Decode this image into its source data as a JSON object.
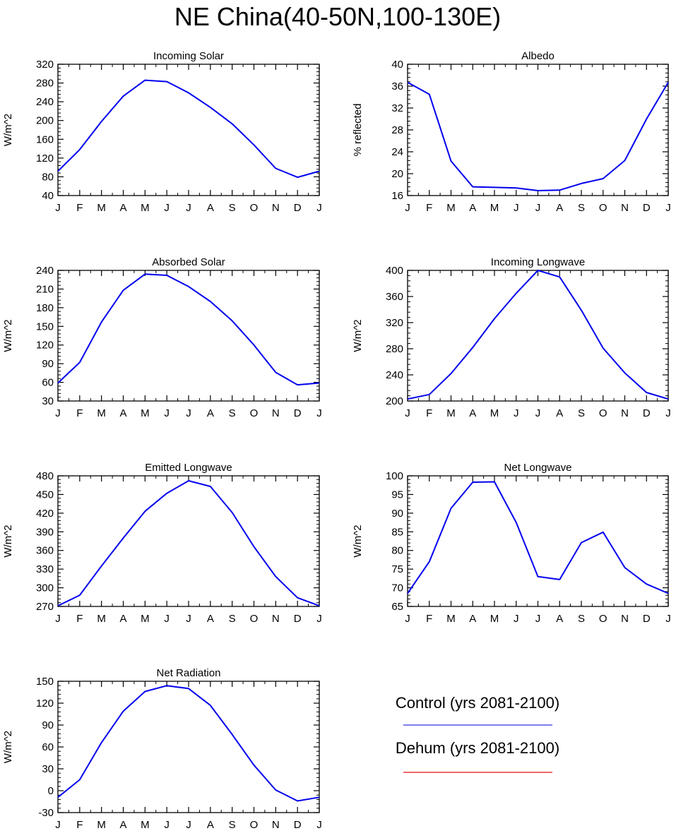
{
  "figure_title": "NE China(40-50N,100-130E)",
  "chart_data": [
    {
      "type": "line",
      "title": "Incoming Solar",
      "ylabel": "W/m^2",
      "categories": [
        "J",
        "F",
        "M",
        "A",
        "M",
        "J",
        "J",
        "A",
        "S",
        "O",
        "N",
        "D",
        "J"
      ],
      "yticks": [
        40,
        80,
        120,
        160,
        200,
        240,
        280,
        320
      ],
      "ylim": [
        40,
        320
      ],
      "series": [
        {
          "color": "#0000ee",
          "values": [
            92,
            138,
            198,
            252,
            286,
            283,
            259,
            228,
            193,
            148,
            98,
            79,
            92
          ]
        }
      ]
    },
    {
      "type": "line",
      "title": "Albedo",
      "ylabel": "% reflected",
      "categories": [
        "J",
        "F",
        "M",
        "A",
        "M",
        "J",
        "J",
        "A",
        "S",
        "O",
        "N",
        "D",
        "J"
      ],
      "yticks": [
        16,
        20,
        24,
        28,
        32,
        36,
        40
      ],
      "ylim": [
        16,
        40
      ],
      "series": [
        {
          "color": "#0000ee",
          "values": [
            36.7,
            34.5,
            22.3,
            17.6,
            17.5,
            17.4,
            16.9,
            17.0,
            18.2,
            19.1,
            22.4,
            30.0,
            36.7
          ]
        }
      ]
    },
    {
      "type": "line",
      "title": "Absorbed Solar",
      "ylabel": "W/m^2",
      "categories": [
        "J",
        "F",
        "M",
        "A",
        "M",
        "J",
        "J",
        "A",
        "S",
        "O",
        "N",
        "D",
        "J"
      ],
      "yticks": [
        30,
        60,
        90,
        120,
        150,
        180,
        210,
        240
      ],
      "ylim": [
        30,
        240
      ],
      "series": [
        {
          "color": "#0000ee",
          "values": [
            59,
            92,
            157,
            208,
            234,
            232,
            214,
            190,
            159,
            120,
            76,
            56,
            59
          ]
        }
      ]
    },
    {
      "type": "line",
      "title": "Incoming Longwave",
      "ylabel": "W/m^2",
      "categories": [
        "J",
        "F",
        "M",
        "A",
        "M",
        "J",
        "J",
        "A",
        "S",
        "O",
        "N",
        "D",
        "J"
      ],
      "yticks": [
        200,
        240,
        280,
        320,
        360,
        400
      ],
      "ylim": [
        200,
        400
      ],
      "series": [
        {
          "color": "#0000ee",
          "values": [
            203,
            210,
            242,
            282,
            326,
            365,
            400,
            390,
            339,
            281,
            243,
            213,
            203
          ]
        }
      ]
    },
    {
      "type": "line",
      "title": "Emitted Longwave",
      "ylabel": "W/m^2",
      "categories": [
        "J",
        "F",
        "M",
        "A",
        "M",
        "J",
        "J",
        "A",
        "S",
        "O",
        "N",
        "D",
        "J"
      ],
      "yticks": [
        270,
        300,
        330,
        360,
        390,
        420,
        450,
        480
      ],
      "ylim": [
        270,
        480
      ],
      "series": [
        {
          "color": "#0000ee",
          "values": [
            271,
            288,
            335,
            380,
            423,
            452,
            472,
            463,
            421,
            366,
            318,
            284,
            271
          ]
        }
      ]
    },
    {
      "type": "line",
      "title": "Net Longwave",
      "ylabel": "W/m^2",
      "categories": [
        "J",
        "F",
        "M",
        "A",
        "M",
        "J",
        "J",
        "A",
        "S",
        "O",
        "N",
        "D",
        "J"
      ],
      "yticks": [
        65,
        70,
        75,
        80,
        85,
        90,
        95,
        100
      ],
      "ylim": [
        65,
        100
      ],
      "series": [
        {
          "color": "#0000ee",
          "values": [
            68.5,
            77.0,
            91.3,
            98.3,
            98.4,
            87.5,
            73.0,
            72.2,
            82.1,
            84.9,
            75.4,
            71.0,
            68.5
          ]
        }
      ]
    },
    {
      "type": "line",
      "title": "Net Radiation",
      "ylabel": "W/m^2",
      "categories": [
        "J",
        "F",
        "M",
        "A",
        "M",
        "J",
        "J",
        "A",
        "S",
        "O",
        "N",
        "D",
        "J"
      ],
      "yticks": [
        -30,
        0,
        30,
        60,
        90,
        120,
        150
      ],
      "ylim": [
        -30,
        150
      ],
      "series": [
        {
          "color": "#0000ee",
          "values": [
            -9,
            15,
            66,
            109,
            136,
            144,
            140,
            117,
            77,
            35,
            1,
            -14,
            -9
          ]
        }
      ]
    }
  ],
  "legend": [
    {
      "label": "Control (yrs 2081-2100)",
      "color": "#3333dd"
    },
    {
      "label": "Dehum (yrs 2081-2100)",
      "color": "#dd1111"
    }
  ]
}
